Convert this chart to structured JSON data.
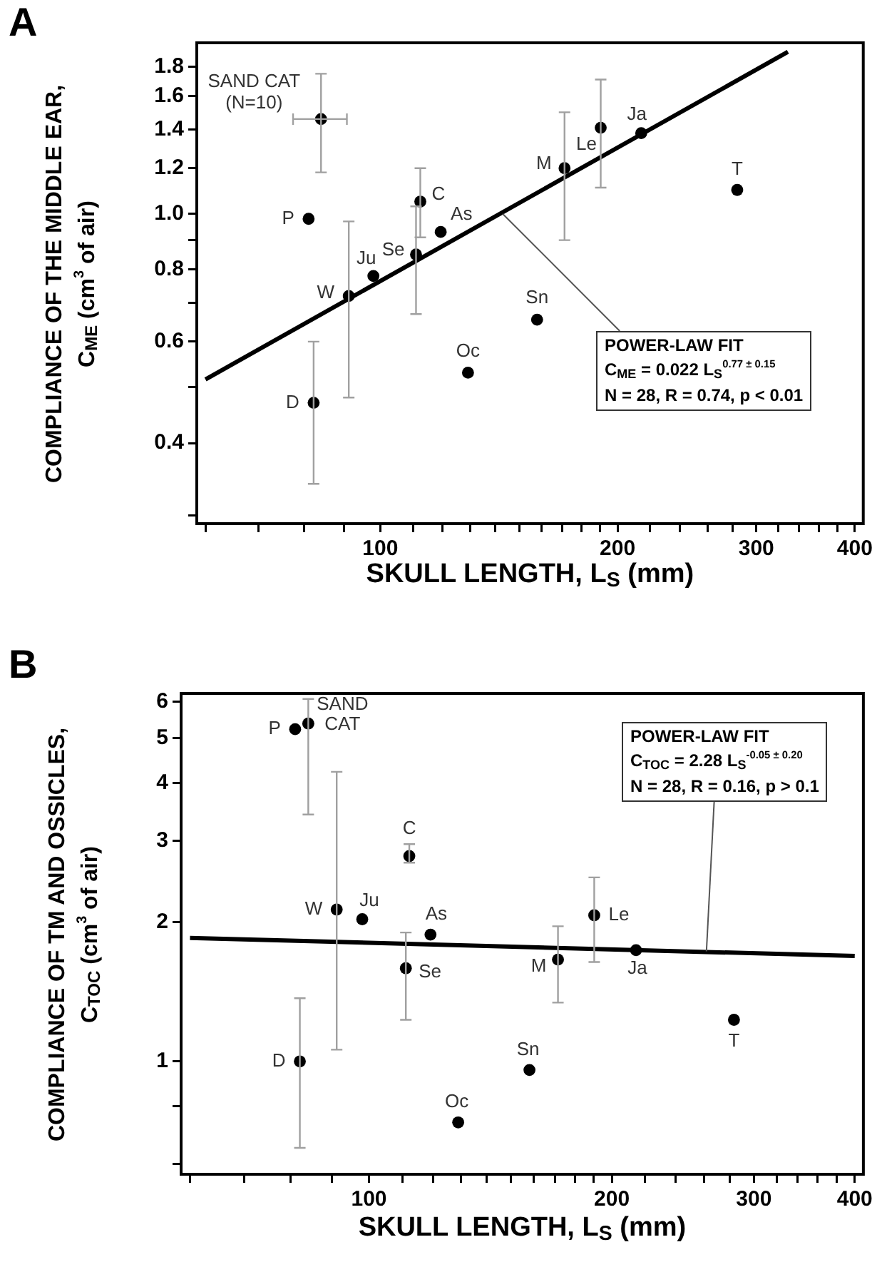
{
  "chart_data": [
    {
      "type": "scatter",
      "title": "A",
      "xlabel": "SKULL LENGTH, L$_{S}$ (mm)",
      "ylabel": "COMPLIANCE OF THE MIDDLE EAR,\nC$_{ME}$ (cm$^{3}$ of air)",
      "log": "xy",
      "grid": false,
      "legend": false,
      "marker": "circle",
      "xlim": [
        58.5,
        410
      ],
      "ylim": [
        0.29,
        1.98
      ],
      "xticks": [
        {
          "value": 60,
          "label": null
        },
        {
          "value": 70,
          "label": null
        },
        {
          "value": 80,
          "label": null
        },
        {
          "value": 90,
          "label": null
        },
        100,
        {
          "value": 110,
          "label": null
        },
        {
          "value": 120,
          "label": null
        },
        {
          "value": 130,
          "label": null
        },
        {
          "value": 140,
          "label": null
        },
        {
          "value": 150,
          "label": null
        },
        {
          "value": 160,
          "label": null
        },
        {
          "value": 170,
          "label": null
        },
        {
          "value": 180,
          "label": null
        },
        {
          "value": 190,
          "label": null
        },
        200,
        {
          "value": 220,
          "label": null
        },
        {
          "value": 240,
          "label": null
        },
        {
          "value": 260,
          "label": null
        },
        {
          "value": 280,
          "label": null
        },
        300,
        {
          "value": 320,
          "label": null
        },
        {
          "value": 340,
          "label": null
        },
        {
          "value": 360,
          "label": null
        },
        {
          "value": 380,
          "label": null
        },
        400
      ],
      "yticks": [
        {
          "value": 0.3,
          "label": null
        },
        0.4,
        {
          "value": 0.5,
          "label": null
        },
        0.6,
        {
          "value": 0.7,
          "label": null
        },
        0.8,
        {
          "value": 0.9,
          "label": null
        },
        {
          "value": 1,
          "label": "1.0"
        },
        1.2,
        1.4,
        1.6,
        1.8
      ],
      "series": [
        {
          "name": "SAND CAT",
          "color": "#000000",
          "x": [
            84.1
          ],
          "values": [
            1.46
          ],
          "errors": [
            [
              1.18,
              1.75
            ]
          ],
          "xerrors": [
            [
              77.5,
              90.7
            ]
          ]
        },
        {
          "name": "P",
          "color": "#000000",
          "x": [
            81.1
          ],
          "values": [
            0.98
          ]
        },
        {
          "name": "W",
          "color": "#000000",
          "x": [
            91.2
          ],
          "values": [
            0.72
          ],
          "errors": [
            [
              0.48,
              0.97
            ]
          ]
        },
        {
          "name": "Ju",
          "color": "#000000",
          "x": [
            98
          ],
          "values": [
            0.78
          ]
        },
        {
          "name": "Se",
          "color": "#000000",
          "x": [
            111
          ],
          "values": [
            0.85
          ],
          "errors": [
            [
              0.67,
              1.03
            ]
          ]
        },
        {
          "name": "C",
          "color": "#000000",
          "x": [
            112.4
          ],
          "values": [
            1.05
          ],
          "errors": [
            [
              0.91,
              1.2
            ]
          ]
        },
        {
          "name": "As",
          "color": "#000000",
          "x": [
            119.3
          ],
          "values": [
            0.93
          ]
        },
        {
          "name": "Oc",
          "color": "#000000",
          "x": [
            129.2
          ],
          "values": [
            0.53
          ]
        },
        {
          "name": "Sn",
          "color": "#000000",
          "x": [
            158.1
          ],
          "values": [
            0.655
          ]
        },
        {
          "name": "M",
          "color": "#000000",
          "x": [
            171.3
          ],
          "values": [
            1.2
          ],
          "errors": [
            [
              0.9,
              1.5
            ]
          ]
        },
        {
          "name": "Le",
          "color": "#000000",
          "x": [
            190.4
          ],
          "values": [
            1.41
          ],
          "errors": [
            [
              1.11,
              1.71
            ]
          ]
        },
        {
          "name": "Ja",
          "color": "#000000",
          "x": [
            214.3
          ],
          "values": [
            1.38
          ]
        },
        {
          "name": "T",
          "color": "#000000",
          "x": [
            283.7
          ],
          "values": [
            1.1
          ]
        },
        {
          "name": "D",
          "color": "#000000",
          "x": [
            82.3
          ],
          "values": [
            0.47
          ],
          "errors": [
            [
              0.34,
              0.6
            ]
          ]
        },
        {
          "type": "line",
          "marker": "none",
          "color": "#000000",
          "x": [
            60,
            329
          ],
          "values": [
            0.516,
            1.91
          ]
        }
      ],
      "annotations": [
        {
          "text": "(N=10)",
          "x": 84.1,
          "y": 1.46
        },
        {
          "text": "POWER-LAW FIT",
          "x": 143,
          "y": 1.0
        },
        "C$_{ME}$ = 0.022 L$_{S}$$^{0.77 ± 0.15}$",
        "N = 28, R = 0.74, p < 0.01"
      ]
    },
    {
      "type": "scatter",
      "title": "B",
      "xlabel": "SKULL LENGTH, L$_{S}$ (mm)",
      "ylabel": "COMPLIANCE OF TM AND OSSICLES,\nC$_{TOC}$ (cm$^{3}$ of air)",
      "log": "xy",
      "grid": false,
      "legend": false,
      "marker": "circle",
      "xlim": [
        58.5,
        410
      ],
      "ylim": [
        0.57,
        6.25
      ],
      "xticks": [
        {
          "value": 60,
          "label": null
        },
        {
          "value": 70,
          "label": null
        },
        {
          "value": 80,
          "label": null
        },
        {
          "value": 90,
          "label": null
        },
        100,
        {
          "value": 110,
          "label": null
        },
        {
          "value": 120,
          "label": null
        },
        {
          "value": 130,
          "label": null
        },
        {
          "value": 140,
          "label": null
        },
        {
          "value": 150,
          "label": null
        },
        {
          "value": 160,
          "label": null
        },
        {
          "value": 170,
          "label": null
        },
        {
          "value": 180,
          "label": null
        },
        {
          "value": 190,
          "label": null
        },
        200,
        {
          "value": 220,
          "label": null
        },
        {
          "value": 240,
          "label": null
        },
        {
          "value": 260,
          "label": null
        },
        {
          "value": 280,
          "label": null
        },
        300,
        {
          "value": 320,
          "label": null
        },
        {
          "value": 340,
          "label": null
        },
        {
          "value": 360,
          "label": null
        },
        {
          "value": 380,
          "label": null
        },
        400
      ],
      "yticks": [
        {
          "value": 0.6,
          "label": null
        },
        {
          "value": 0.8,
          "label": null
        },
        1,
        2,
        3,
        4,
        5,
        6
      ],
      "series": [
        {
          "name": "SAND CAT",
          "color": "#000000",
          "x": [
            84.1
          ],
          "values": [
            5.38
          ],
          "errors": [
            [
              3.42,
              6.08
            ]
          ]
        },
        {
          "name": "P",
          "color": "#000000",
          "x": [
            81
          ],
          "values": [
            5.23
          ]
        },
        {
          "name": "W",
          "color": "#000000",
          "x": [
            91.2
          ],
          "values": [
            2.13
          ],
          "errors": [
            [
              1.06,
              4.23
            ]
          ]
        },
        {
          "name": "Ju",
          "color": "#000000",
          "x": [
            98.1
          ],
          "values": [
            2.03
          ]
        },
        {
          "name": "C",
          "color": "#000000",
          "x": [
            112.2
          ],
          "values": [
            2.78
          ],
          "errors": [
            [
              2.69,
              2.95
            ]
          ]
        },
        {
          "name": "As",
          "color": "#000000",
          "x": [
            119.2
          ],
          "values": [
            1.88
          ]
        },
        {
          "name": "Se",
          "color": "#000000",
          "x": [
            111.1
          ],
          "values": [
            1.59
          ],
          "errors": [
            [
              1.23,
              1.9
            ]
          ]
        },
        {
          "name": "M",
          "color": "#000000",
          "x": [
            171.5
          ],
          "values": [
            1.66
          ],
          "errors": [
            [
              1.34,
              1.96
            ]
          ]
        },
        {
          "name": "Le",
          "color": "#000000",
          "x": [
            190.2
          ],
          "values": [
            2.07
          ],
          "errors": [
            [
              1.64,
              2.5
            ]
          ]
        },
        {
          "name": "Ja",
          "color": "#000000",
          "x": [
            214.3
          ],
          "values": [
            1.74
          ]
        },
        {
          "name": "T",
          "color": "#000000",
          "x": [
            283.4
          ],
          "values": [
            1.23
          ]
        },
        {
          "name": "D",
          "color": "#000000",
          "x": [
            82.1
          ],
          "values": [
            1
          ],
          "errors": [
            [
              0.65,
              1.37
            ]
          ]
        },
        {
          "name": "Sn",
          "color": "#000000",
          "x": [
            158.1
          ],
          "values": [
            0.958
          ]
        },
        {
          "name": "Oc",
          "color": "#000000",
          "x": [
            129
          ],
          "values": [
            0.738
          ]
        },
        {
          "type": "line",
          "marker": "none",
          "color": "#000000",
          "x": [
            60,
            400
          ],
          "values": [
            1.85,
            1.69
          ]
        }
      ],
      "annotations": [
        "POWER-LAW FIT",
        "C$_{TOC}$ = 2.28 L$_{S}$$^{-0.05 ± 0.20}$",
        {
          "text": "N = 28, R = 0.16, p > 0.1",
          "x": 262,
          "y": 1.73
        }
      ]
    }
  ]
}
